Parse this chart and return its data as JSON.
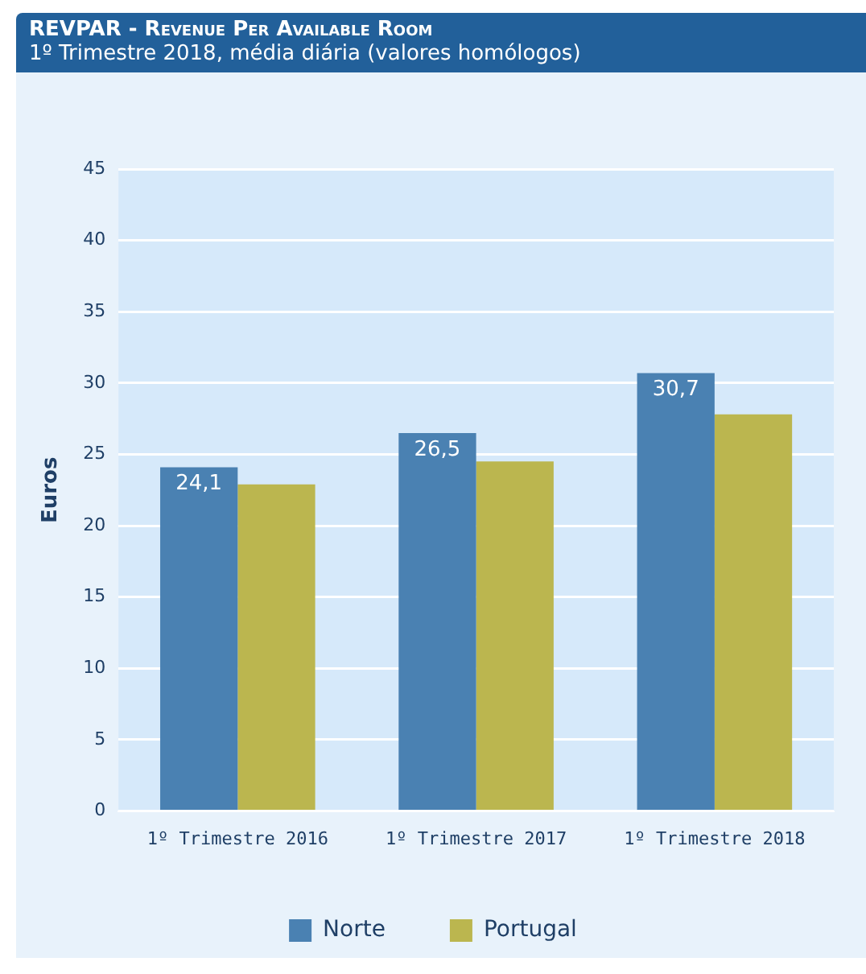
{
  "chart_data": {
    "type": "bar",
    "title": "REVPAR - Revenue Per Available Room",
    "subtitle": "1º Trimestre 2018, média diária (valores homólogos)",
    "ylabel": "Euros",
    "categories": [
      "1º Trimestre 2016",
      "1º Trimestre 2017",
      "1º Trimestre 2018"
    ],
    "series": [
      {
        "name": "Norte",
        "color": "#4a81b2",
        "values": [
          24.1,
          26.5,
          30.7
        ],
        "value_labels": [
          "24,1",
          "26,5",
          "30,7"
        ]
      },
      {
        "name": "Portugal",
        "color": "#bbb64f",
        "values": [
          22.9,
          24.5,
          27.8
        ]
      }
    ],
    "ylim": [
      0,
      45
    ],
    "yticks": [
      0,
      5,
      10,
      15,
      20,
      25,
      30,
      35,
      40,
      45
    ],
    "grid": "y",
    "legend": "bottom"
  }
}
